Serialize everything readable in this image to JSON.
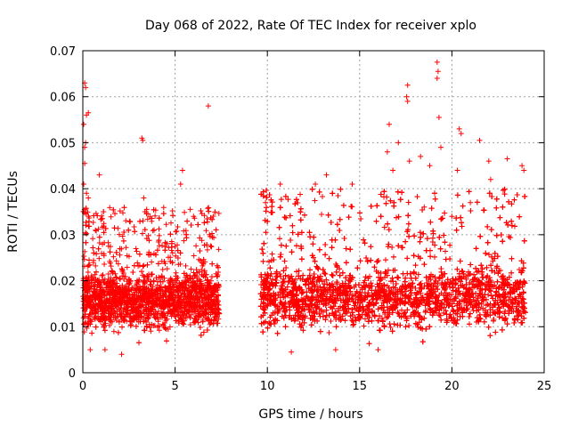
{
  "chart_data": {
    "type": "scatter",
    "title": "Day 068 of 2022, Rate Of TEC Index for receiver xplo",
    "xlabel": "GPS time / hours",
    "ylabel": "ROTI / TECUs",
    "xlim": [
      0,
      25
    ],
    "ylim": [
      0,
      0.07
    ],
    "xticks": [
      0,
      5,
      10,
      15,
      20,
      25
    ],
    "yticks": [
      0,
      0.01,
      0.02,
      0.03,
      0.04,
      0.05,
      0.06,
      0.07
    ],
    "xtick_labels": [
      "0",
      "5",
      "10",
      "15",
      "20",
      "25"
    ],
    "ytick_labels": [
      "0",
      "0.01",
      "0.02",
      "0.03",
      "0.04",
      "0.05",
      "0.06",
      "0.07"
    ],
    "grid": true,
    "marker": "+",
    "color": "#ff0000",
    "data_gap_hours": [
      7.4,
      9.6
    ],
    "series": [
      {
        "segments": [
          {
            "x_range": [
              0.0,
              7.4
            ],
            "typical_range": [
              0.009,
              0.023
            ],
            "max_envelope": 0.036
          },
          {
            "x_range": [
              9.6,
              24.0
            ],
            "typical_range": [
              0.009,
              0.024
            ],
            "max_envelope": 0.04
          }
        ],
        "points": [
          {
            "x": 0.1,
            "y": 0.063
          },
          {
            "x": 0.15,
            "y": 0.062
          },
          {
            "x": 0.2,
            "y": 0.056
          },
          {
            "x": 0.3,
            "y": 0.0565
          },
          {
            "x": 0.05,
            "y": 0.054
          },
          {
            "x": 0.1,
            "y": 0.049
          },
          {
            "x": 0.15,
            "y": 0.05
          },
          {
            "x": 0.1,
            "y": 0.0455
          },
          {
            "x": 0.05,
            "y": 0.041
          },
          {
            "x": 0.2,
            "y": 0.039
          },
          {
            "x": 0.9,
            "y": 0.043
          },
          {
            "x": 0.3,
            "y": 0.038
          },
          {
            "x": 3.2,
            "y": 0.051
          },
          {
            "x": 3.25,
            "y": 0.0505
          },
          {
            "x": 3.3,
            "y": 0.038
          },
          {
            "x": 5.4,
            "y": 0.044
          },
          {
            "x": 5.3,
            "y": 0.041
          },
          {
            "x": 6.0,
            "y": 0.034
          },
          {
            "x": 6.8,
            "y": 0.058
          },
          {
            "x": 9.9,
            "y": 0.037
          },
          {
            "x": 10.7,
            "y": 0.041
          },
          {
            "x": 12.6,
            "y": 0.041
          },
          {
            "x": 13.2,
            "y": 0.043
          },
          {
            "x": 14.6,
            "y": 0.041
          },
          {
            "x": 16.5,
            "y": 0.048
          },
          {
            "x": 16.6,
            "y": 0.054
          },
          {
            "x": 16.8,
            "y": 0.044
          },
          {
            "x": 17.1,
            "y": 0.05
          },
          {
            "x": 17.6,
            "y": 0.0625
          },
          {
            "x": 17.55,
            "y": 0.06
          },
          {
            "x": 17.6,
            "y": 0.059
          },
          {
            "x": 17.7,
            "y": 0.046
          },
          {
            "x": 18.3,
            "y": 0.047
          },
          {
            "x": 18.8,
            "y": 0.045
          },
          {
            "x": 19.2,
            "y": 0.0675
          },
          {
            "x": 19.25,
            "y": 0.0655
          },
          {
            "x": 19.2,
            "y": 0.064
          },
          {
            "x": 19.3,
            "y": 0.0555
          },
          {
            "x": 19.4,
            "y": 0.049
          },
          {
            "x": 20.4,
            "y": 0.053
          },
          {
            "x": 20.5,
            "y": 0.052
          },
          {
            "x": 20.3,
            "y": 0.044
          },
          {
            "x": 21.5,
            "y": 0.0505
          },
          {
            "x": 22.0,
            "y": 0.046
          },
          {
            "x": 22.1,
            "y": 0.042
          },
          {
            "x": 23.0,
            "y": 0.0465
          },
          {
            "x": 23.8,
            "y": 0.045
          },
          {
            "x": 23.9,
            "y": 0.044
          },
          {
            "x": 20.0,
            "y": 0.034
          },
          {
            "x": 21.0,
            "y": 0.037
          },
          {
            "x": 18.5,
            "y": 0.036
          },
          {
            "x": 1.2,
            "y": 0.005
          },
          {
            "x": 2.1,
            "y": 0.004
          },
          {
            "x": 0.4,
            "y": 0.005
          },
          {
            "x": 13.7,
            "y": 0.005
          },
          {
            "x": 11.3,
            "y": 0.0045
          },
          {
            "x": 16.0,
            "y": 0.005
          }
        ]
      }
    ]
  }
}
